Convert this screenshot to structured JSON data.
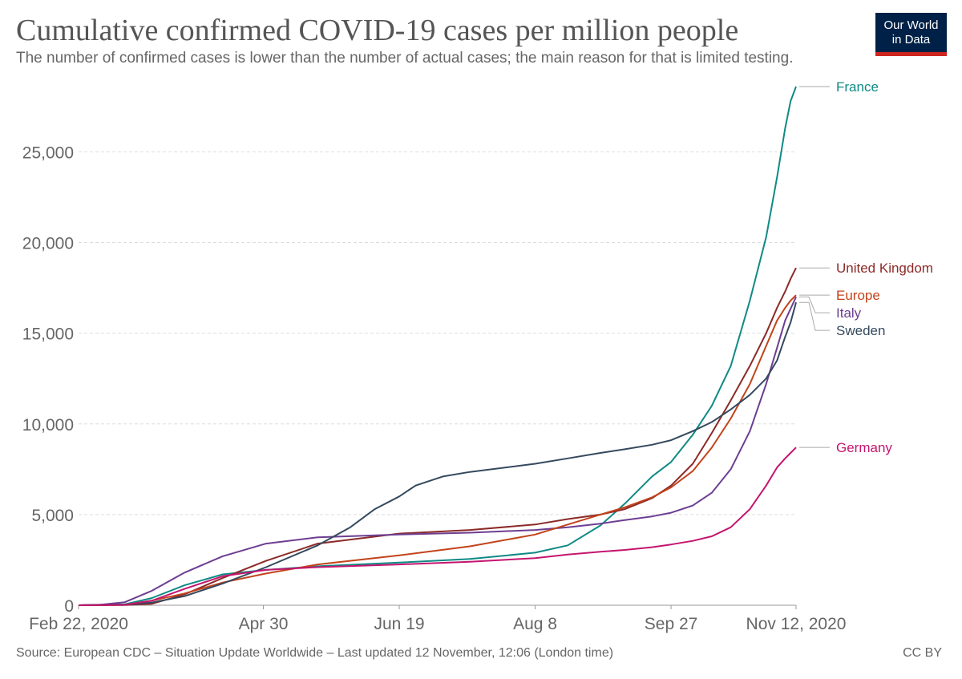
{
  "header": {
    "title": "Cumulative confirmed COVID-19 cases per million people",
    "subtitle": "The number of confirmed cases is lower than the number of actual cases; the main reason for that is limited testing.",
    "logo_line1": "Our World",
    "logo_line2": "in Data"
  },
  "footer": {
    "source": "Source: European CDC – Situation Update Worldwide – Last updated 12 November, 12:06 (London time)",
    "license": "CC BY"
  },
  "colors": {
    "grid": "#dddddd",
    "axis": "#999999",
    "logo_bg": "#002147",
    "logo_bar": "#ce261e"
  },
  "chart_data": {
    "type": "line",
    "title": "Cumulative confirmed COVID-19 cases per million people",
    "subtitle": "The number of confirmed cases is lower than the number of actual cases; the main reason for that is limited testing.",
    "x_ticks": [
      "2020-02-22",
      "2020-04-30",
      "2020-06-19",
      "2020-08-08",
      "2020-09-27",
      "2020-11-12"
    ],
    "x_tick_labels": [
      "Feb 22, 2020",
      "Apr 30",
      "Jun 19",
      "Aug 8",
      "Sep 27",
      "Nov 12, 2020"
    ],
    "xlim": [
      "2020-02-22",
      "2020-11-12"
    ],
    "ylim": [
      0,
      28600
    ],
    "y_ticks": [
      0,
      5000,
      10000,
      15000,
      20000,
      25000
    ],
    "y_tick_labels": [
      "0",
      "5,000",
      "10,000",
      "15,000",
      "20,000",
      "25,000"
    ],
    "grid": "horizontal dashed",
    "legend": "right, line-end labels",
    "series": [
      {
        "name": "France",
        "color": "#0f8a85",
        "points": [
          [
            "2020-02-22",
            0
          ],
          [
            "2020-03-10",
            50
          ],
          [
            "2020-03-20",
            400
          ],
          [
            "2020-04-01",
            1100
          ],
          [
            "2020-04-15",
            1700
          ],
          [
            "2020-05-01",
            1950
          ],
          [
            "2020-05-20",
            2150
          ],
          [
            "2020-06-19",
            2350
          ],
          [
            "2020-07-15",
            2550
          ],
          [
            "2020-08-08",
            2900
          ],
          [
            "2020-08-20",
            3300
          ],
          [
            "2020-09-01",
            4400
          ],
          [
            "2020-09-10",
            5600
          ],
          [
            "2020-09-20",
            7100
          ],
          [
            "2020-09-27",
            7900
          ],
          [
            "2020-10-05",
            9400
          ],
          [
            "2020-10-12",
            11000
          ],
          [
            "2020-10-19",
            13200
          ],
          [
            "2020-10-26",
            16800
          ],
          [
            "2020-11-01",
            20300
          ],
          [
            "2020-11-05",
            23600
          ],
          [
            "2020-11-08",
            26300
          ],
          [
            "2020-11-10",
            27800
          ],
          [
            "2020-11-12",
            28600
          ]
        ]
      },
      {
        "name": "United Kingdom",
        "color": "#8c2a28",
        "points": [
          [
            "2020-02-22",
            0
          ],
          [
            "2020-03-10",
            10
          ],
          [
            "2020-03-20",
            80
          ],
          [
            "2020-04-01",
            600
          ],
          [
            "2020-04-15",
            1500
          ],
          [
            "2020-05-01",
            2450
          ],
          [
            "2020-05-20",
            3400
          ],
          [
            "2020-06-19",
            3950
          ],
          [
            "2020-07-15",
            4150
          ],
          [
            "2020-08-08",
            4450
          ],
          [
            "2020-08-20",
            4750
          ],
          [
            "2020-09-01",
            5000
          ],
          [
            "2020-09-10",
            5300
          ],
          [
            "2020-09-20",
            5900
          ],
          [
            "2020-09-27",
            6600
          ],
          [
            "2020-10-05",
            7800
          ],
          [
            "2020-10-12",
            9500
          ],
          [
            "2020-10-19",
            11300
          ],
          [
            "2020-10-26",
            13200
          ],
          [
            "2020-11-01",
            15000
          ],
          [
            "2020-11-05",
            16400
          ],
          [
            "2020-11-08",
            17300
          ],
          [
            "2020-11-10",
            18000
          ],
          [
            "2020-11-12",
            18600
          ]
        ]
      },
      {
        "name": "Italy",
        "color": "#6d3e91",
        "points": [
          [
            "2020-02-22",
            0
          ],
          [
            "2020-03-01",
            30
          ],
          [
            "2020-03-10",
            170
          ],
          [
            "2020-03-20",
            800
          ],
          [
            "2020-04-01",
            1800
          ],
          [
            "2020-04-15",
            2700
          ],
          [
            "2020-05-01",
            3400
          ],
          [
            "2020-05-20",
            3750
          ],
          [
            "2020-06-19",
            3900
          ],
          [
            "2020-07-15",
            4000
          ],
          [
            "2020-08-08",
            4150
          ],
          [
            "2020-08-20",
            4300
          ],
          [
            "2020-09-01",
            4500
          ],
          [
            "2020-09-10",
            4700
          ],
          [
            "2020-09-20",
            4900
          ],
          [
            "2020-09-27",
            5100
          ],
          [
            "2020-10-05",
            5500
          ],
          [
            "2020-10-12",
            6200
          ],
          [
            "2020-10-19",
            7500
          ],
          [
            "2020-10-26",
            9600
          ],
          [
            "2020-11-01",
            12200
          ],
          [
            "2020-11-05",
            14200
          ],
          [
            "2020-11-08",
            15700
          ],
          [
            "2020-11-12",
            17000
          ]
        ]
      },
      {
        "name": "Europe",
        "color": "#c2431b",
        "points": [
          [
            "2020-02-22",
            0
          ],
          [
            "2020-03-10",
            20
          ],
          [
            "2020-03-20",
            250
          ],
          [
            "2020-04-01",
            650
          ],
          [
            "2020-04-15",
            1250
          ],
          [
            "2020-05-01",
            1750
          ],
          [
            "2020-05-20",
            2250
          ],
          [
            "2020-06-19",
            2750
          ],
          [
            "2020-07-15",
            3250
          ],
          [
            "2020-08-08",
            3900
          ],
          [
            "2020-08-20",
            4450
          ],
          [
            "2020-09-01",
            5000
          ],
          [
            "2020-09-10",
            5400
          ],
          [
            "2020-09-20",
            5950
          ],
          [
            "2020-09-27",
            6500
          ],
          [
            "2020-10-05",
            7400
          ],
          [
            "2020-10-12",
            8700
          ],
          [
            "2020-10-19",
            10300
          ],
          [
            "2020-10-26",
            12200
          ],
          [
            "2020-11-01",
            14300
          ],
          [
            "2020-11-05",
            15700
          ],
          [
            "2020-11-08",
            16400
          ],
          [
            "2020-11-10",
            16800
          ],
          [
            "2020-11-12",
            17100
          ]
        ]
      },
      {
        "name": "Sweden",
        "color": "#34495e",
        "points": [
          [
            "2020-02-22",
            0
          ],
          [
            "2020-03-10",
            30
          ],
          [
            "2020-03-20",
            150
          ],
          [
            "2020-04-01",
            500
          ],
          [
            "2020-04-15",
            1200
          ],
          [
            "2020-05-01",
            2100
          ],
          [
            "2020-05-20",
            3300
          ],
          [
            "2020-06-01",
            4300
          ],
          [
            "2020-06-10",
            5300
          ],
          [
            "2020-06-19",
            6000
          ],
          [
            "2020-06-25",
            6600
          ],
          [
            "2020-07-05",
            7100
          ],
          [
            "2020-07-15",
            7350
          ],
          [
            "2020-08-08",
            7800
          ],
          [
            "2020-08-20",
            8100
          ],
          [
            "2020-09-01",
            8400
          ],
          [
            "2020-09-10",
            8600
          ],
          [
            "2020-09-20",
            8850
          ],
          [
            "2020-09-27",
            9100
          ],
          [
            "2020-10-05",
            9600
          ],
          [
            "2020-10-12",
            10100
          ],
          [
            "2020-10-19",
            10800
          ],
          [
            "2020-10-26",
            11600
          ],
          [
            "2020-11-01",
            12500
          ],
          [
            "2020-11-05",
            13500
          ],
          [
            "2020-11-08",
            14800
          ],
          [
            "2020-11-10",
            15600
          ],
          [
            "2020-11-12",
            16700
          ]
        ]
      },
      {
        "name": "Germany",
        "color": "#c4156f",
        "points": [
          [
            "2020-02-22",
            0
          ],
          [
            "2020-03-10",
            20
          ],
          [
            "2020-03-20",
            250
          ],
          [
            "2020-04-01",
            900
          ],
          [
            "2020-04-15",
            1600
          ],
          [
            "2020-05-01",
            1950
          ],
          [
            "2020-05-20",
            2100
          ],
          [
            "2020-06-19",
            2250
          ],
          [
            "2020-07-15",
            2400
          ],
          [
            "2020-08-08",
            2600
          ],
          [
            "2020-08-20",
            2800
          ],
          [
            "2020-09-01",
            2950
          ],
          [
            "2020-09-10",
            3050
          ],
          [
            "2020-09-20",
            3200
          ],
          [
            "2020-09-27",
            3350
          ],
          [
            "2020-10-05",
            3550
          ],
          [
            "2020-10-12",
            3800
          ],
          [
            "2020-10-19",
            4300
          ],
          [
            "2020-10-26",
            5300
          ],
          [
            "2020-11-01",
            6600
          ],
          [
            "2020-11-05",
            7600
          ],
          [
            "2020-11-08",
            8100
          ],
          [
            "2020-11-10",
            8400
          ],
          [
            "2020-11-12",
            8700
          ]
        ]
      }
    ]
  }
}
